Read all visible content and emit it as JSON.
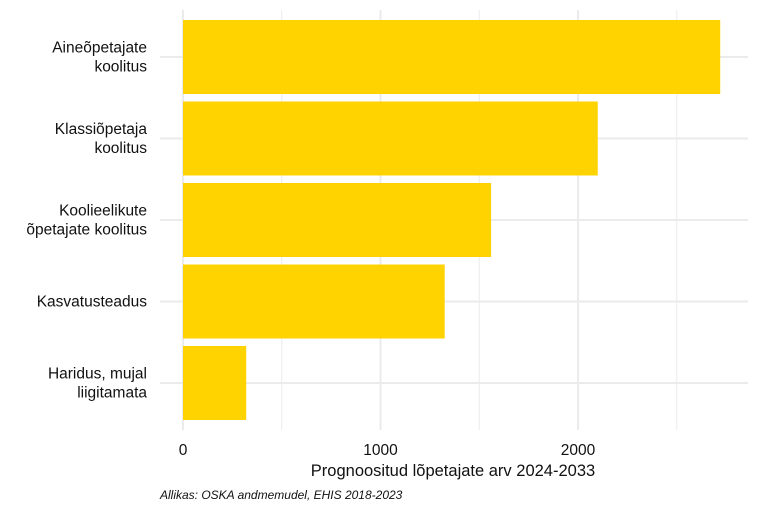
{
  "chart_data": {
    "type": "bar",
    "orientation": "horizontal",
    "categories": [
      [
        "Aineõpetajate",
        "koolitus"
      ],
      [
        "Klassiõpetaja",
        "koolitus"
      ],
      [
        "Koolieelikute",
        "õpetajate koolitus"
      ],
      [
        "Kasvatusteadus"
      ],
      [
        "Haridus, mujal",
        "liigitamata"
      ]
    ],
    "values": [
      2720,
      2100,
      1560,
      1325,
      320
    ],
    "xlabel": "Prognoositud lõpetajate arv 2024-2033",
    "ylabel": "",
    "xlim": [
      0,
      2850
    ],
    "xticks": [
      0,
      1000,
      2000
    ],
    "minor_gridlines": [
      500,
      1500,
      2500
    ],
    "grid": true,
    "bar_color": "#FFD300",
    "grid_color": "#EBEBEB"
  },
  "source_note": "Allikas: OSKA andmemudel, EHIS 2018-2023"
}
